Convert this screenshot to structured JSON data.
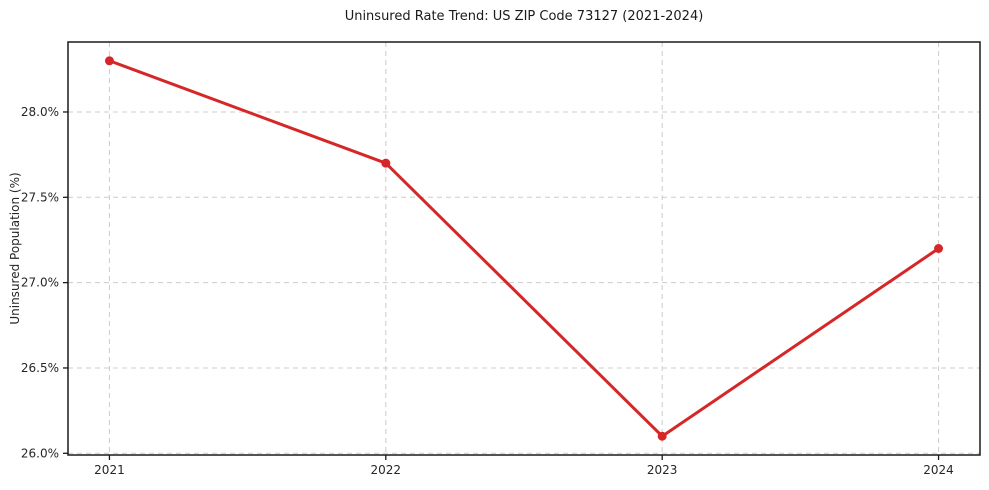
{
  "chart_data": {
    "type": "line",
    "title": "Uninsured Rate Trend: US ZIP Code 73127 (2021-2024)",
    "xlabel": "",
    "ylabel": "Uninsured Population (%)",
    "x": [
      2021,
      2022,
      2023,
      2024
    ],
    "values": [
      28.3,
      27.7,
      26.1,
      27.2
    ],
    "xlim": [
      2020.85,
      2024.15
    ],
    "ylim": [
      25.99,
      28.41
    ],
    "xticks": {
      "values": [
        2021,
        2022,
        2023,
        2024
      ],
      "labels": [
        "2021",
        "2022",
        "2023",
        "2024"
      ]
    },
    "yticks": {
      "values": [
        26.0,
        26.5,
        27.0,
        27.5,
        28.0
      ],
      "labels": [
        "26.0%",
        "26.5%",
        "27.0%",
        "27.5%",
        "28.0%"
      ]
    },
    "grid": true,
    "grid_style": "dashed",
    "legend_position": "none",
    "line_color": "#d62728",
    "marker": "circle",
    "grid_color": "#cccccc",
    "spine_color": "#1a1a1a",
    "background_color": "#ffffff"
  }
}
